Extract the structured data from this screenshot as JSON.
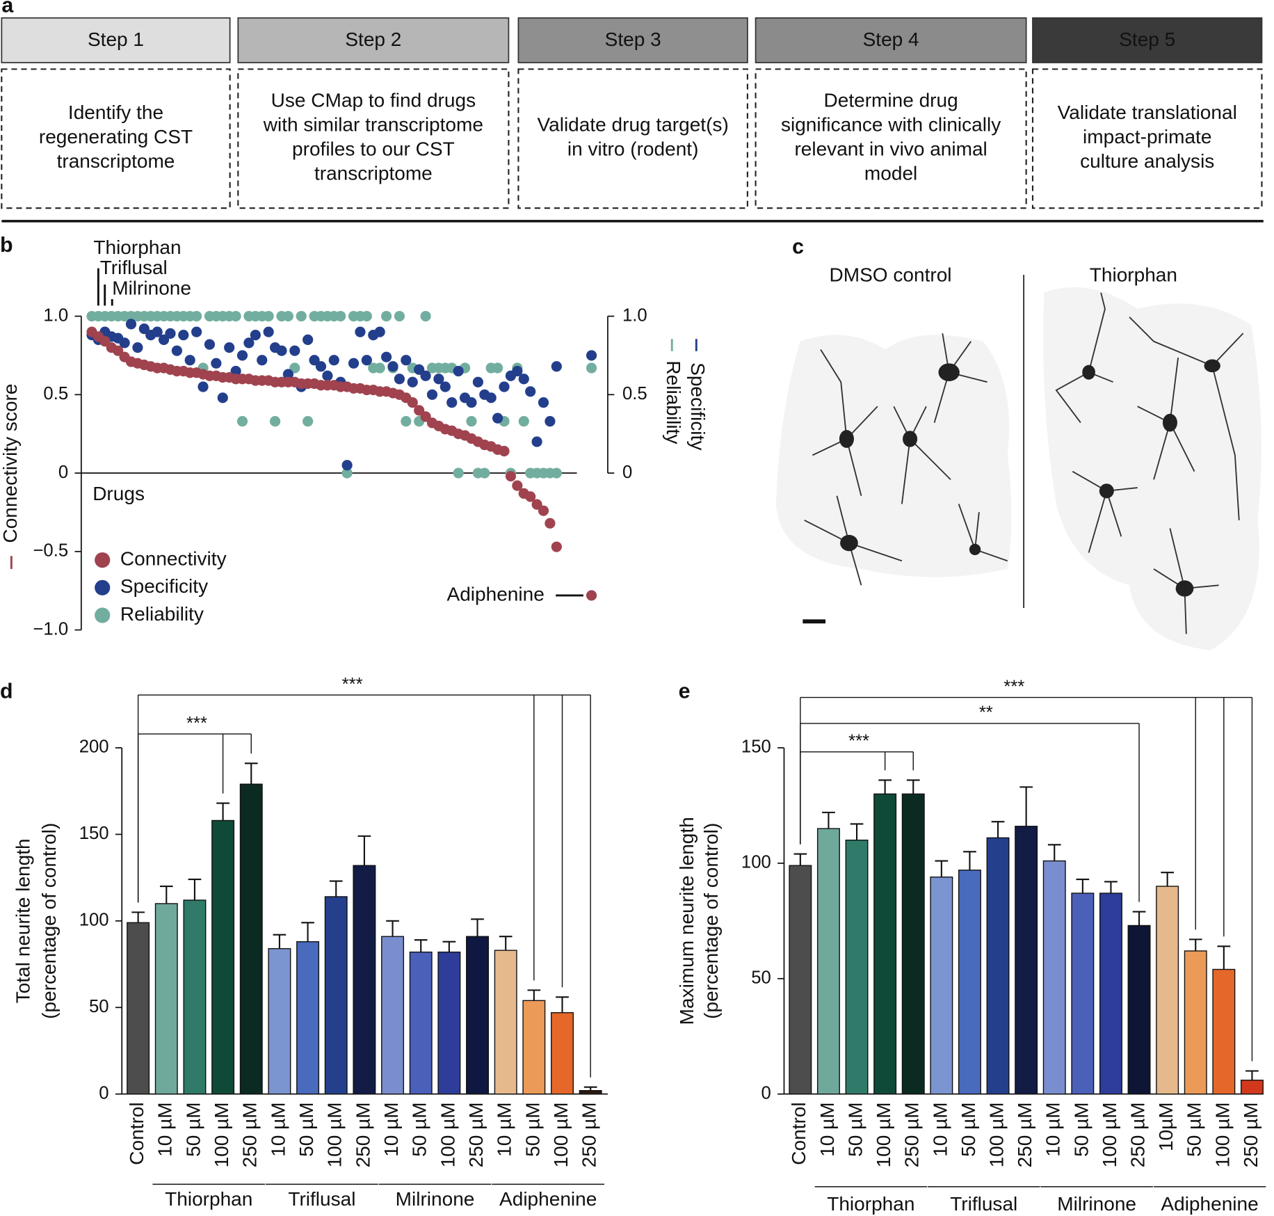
{
  "panel_labels": [
    "a",
    "b",
    "c",
    "d",
    "e"
  ],
  "steps": [
    {
      "title": "Step 1",
      "color": "#dedede",
      "text_color": "#111111",
      "lines": [
        "Identify the",
        "regenerating CST",
        "transcriptome"
      ]
    },
    {
      "title": "Step 2",
      "color": "#b6b6b6",
      "text_color": "#111111",
      "lines": [
        "Use CMap to find drugs",
        "with similar transcriptome",
        "profiles to our CST",
        "transcriptome"
      ]
    },
    {
      "title": "Step 3",
      "color": "#8f8f8f",
      "text_color": "#111111",
      "lines": [
        "Validate drug target(s)",
        "in vitro (rodent)"
      ]
    },
    {
      "title": "Step 4",
      "color": "#8b8b8b",
      "text_color": "#ffffff",
      "lines": [
        "Determine drug",
        "significance with clinically",
        "relevant in vivo animal",
        "model"
      ]
    },
    {
      "title": "Step 5",
      "color": "#3a3a3a",
      "text_color": "#ffffff",
      "lines": [
        "Validate translational",
        "impact-primate",
        "culture analysis"
      ]
    }
  ],
  "images": {
    "labels": [
      "DMSO control",
      "Thiorphan"
    ]
  },
  "chart_data": [
    {
      "type": "scatter",
      "xlabel": "Drugs",
      "ylabel": "Connectivity score",
      "y2labels": [
        "Specificity",
        "Reliability"
      ],
      "ylim": [
        -1,
        1
      ],
      "yticks": [
        {
          "value": -1,
          "label": "−1.0"
        },
        {
          "value": -0.5,
          "label": "−0.5"
        },
        0,
        0.5,
        {
          "value": 1,
          "label": "1.0"
        }
      ],
      "y2lim": [
        0,
        1
      ],
      "y2ticks": [
        0,
        0.5,
        {
          "value": 1,
          "label": "1.0"
        }
      ],
      "legend": "bottom left",
      "annotations": [
        "Thiorphan",
        "Triflusal",
        "Milrinone"
      ],
      "highlight": {
        "label": "Adiphenine",
        "connectivity": -0.78,
        "specificity": 0.75,
        "reliability": 0.67
      },
      "series": [
        {
          "name": "Connectivity",
          "color": "#a0434f",
          "values": [
            0.9,
            0.87,
            0.84,
            0.8,
            0.78,
            0.74,
            0.71,
            0.7,
            0.69,
            0.68,
            0.67,
            0.67,
            0.66,
            0.65,
            0.65,
            0.64,
            0.64,
            0.63,
            0.62,
            0.62,
            0.61,
            0.61,
            0.6,
            0.6,
            0.6,
            0.59,
            0.59,
            0.59,
            0.58,
            0.58,
            0.58,
            0.58,
            0.57,
            0.57,
            0.57,
            0.56,
            0.56,
            0.56,
            0.55,
            0.55,
            0.54,
            0.54,
            0.53,
            0.53,
            0.52,
            0.52,
            0.51,
            0.5,
            0.48,
            0.45,
            0.4,
            0.36,
            0.32,
            0.3,
            0.28,
            0.27,
            0.25,
            0.24,
            0.22,
            0.2,
            0.18,
            0.17,
            0.15,
            0.14,
            -0.02,
            -0.08,
            -0.13,
            -0.15,
            -0.2,
            -0.24,
            -0.32,
            -0.47
          ]
        },
        {
          "name": "Specificity",
          "color": "#233f8c",
          "axis": "y2",
          "values": [
            0.88,
            0.85,
            0.9,
            0.87,
            0.86,
            0.83,
            0.95,
            0.8,
            0.92,
            0.88,
            0.9,
            0.85,
            0.89,
            0.78,
            0.88,
            0.72,
            0.9,
            0.55,
            0.82,
            0.7,
            0.48,
            0.8,
            0.65,
            0.75,
            0.83,
            0.88,
            0.72,
            0.9,
            0.8,
            0.78,
            0.63,
            0.78,
            0.55,
            0.85,
            0.72,
            0.68,
            0.62,
            0.72,
            0.58,
            0.05,
            0.7,
            0.9,
            0.72,
            0.88,
            0.9,
            0.74,
            0.68,
            0.6,
            0.72,
            0.58,
            0.66,
            0.62,
            0.5,
            0.6,
            0.55,
            0.45,
            0.65,
            0.48,
            0.45,
            0.58,
            0.5,
            0.48,
            0.35,
            0.55,
            0.62,
            0.65,
            0.6,
            0.52,
            0.2,
            0.45,
            0.33,
            0.68
          ]
        },
        {
          "name": "Reliability",
          "color": "#72ae9f",
          "axis": "y2",
          "values": [
            1,
            1,
            1,
            1,
            1,
            1,
            1,
            1,
            1,
            1,
            1,
            1,
            1,
            1,
            1,
            1,
            1,
            0.67,
            1,
            1,
            1,
            1,
            1,
            0.33,
            1,
            1,
            1,
            1,
            0.33,
            1,
            1,
            0.67,
            1,
            0.33,
            1,
            1,
            1,
            1,
            1,
            0,
            1,
            1,
            1,
            0.67,
            0.67,
            1,
            0.67,
            1,
            0.33,
            0.67,
            0.33,
            1,
            0.67,
            0.67,
            0.67,
            0.67,
            0,
            0.67,
            0.33,
            0,
            0,
            0.67,
            0.67,
            0.33,
            0,
            0.67,
            0.33,
            0,
            0,
            0,
            0,
            0
          ]
        }
      ]
    },
    {
      "type": "bar",
      "ylabel": [
        "Total neurite length",
        "(percentage of control)"
      ],
      "categories": [
        "Control",
        "10 µM",
        "50 µM",
        "100 µM",
        "250 µM",
        "10 µM",
        "50 µM",
        "100 µM",
        "250 µM",
        "10 µM",
        "50 µM",
        "100 µM",
        "250 µM",
        "10 µM",
        "50 µM",
        "100 µM",
        "250 µM"
      ],
      "groups": [
        "Thiorphan",
        "Triflusal",
        "Milrinone",
        "Adiphenine"
      ],
      "values": [
        99,
        110,
        112,
        158,
        179,
        84,
        88,
        114,
        132,
        91,
        82,
        82,
        91,
        83,
        54,
        47,
        2
      ],
      "errors": [
        6,
        10,
        12,
        10,
        12,
        8,
        11,
        9,
        17,
        9,
        7,
        6,
        10,
        8,
        6,
        9,
        2
      ],
      "colors": [
        "#4d4d4d",
        "#6fa99c",
        "#2f7a68",
        "#0f4a38",
        "#0b2b22",
        "#7b95d1",
        "#4a6bbd",
        "#24408c",
        "#121c45",
        "#7a8dcf",
        "#4b60b8",
        "#2e3d9a",
        "#0f1840",
        "#e6b98c",
        "#eb9a58",
        "#e5682a",
        "#2b1a12"
      ],
      "ylim": [
        0,
        200
      ],
      "yticks": [
        0,
        50,
        100,
        150,
        200
      ],
      "annotations": [
        "***",
        "***"
      ]
    },
    {
      "type": "bar",
      "ylabel": [
        "Maximum neurite length",
        "(percentage of control)"
      ],
      "categories": [
        "Control",
        "10 µM",
        "50 µM",
        "100 µM",
        "250 µM",
        "10 µM",
        "50 µM",
        "100 µM",
        "250 µM",
        "10 µM",
        "50 µM",
        "100 µM",
        "250 µM",
        "10µM",
        "50 µM",
        "100 µM",
        "250 µM"
      ],
      "groups": [
        "Thiorphan",
        "Triflusal",
        "Milrinone",
        "Adiphenine"
      ],
      "values": [
        99,
        115,
        110,
        130,
        130,
        94,
        97,
        111,
        116,
        101,
        87,
        87,
        73,
        90,
        62,
        54,
        6
      ],
      "errors": [
        5,
        7,
        7,
        6,
        6,
        7,
        8,
        7,
        17,
        7,
        6,
        5,
        6,
        6,
        5,
        10,
        4
      ],
      "colors": [
        "#4d4d4d",
        "#6fa99c",
        "#2f7a68",
        "#0f4a38",
        "#0b2b22",
        "#7b95d1",
        "#4a6bbd",
        "#24408c",
        "#121c45",
        "#7a8dcf",
        "#4b60b8",
        "#2e3d9a",
        "#0f1535",
        "#e6b98c",
        "#eb9a58",
        "#e5682a",
        "#d2391c"
      ],
      "ylim": [
        0,
        150
      ],
      "yticks": [
        0,
        50,
        100,
        150
      ],
      "annotations": [
        "***",
        "**",
        "***"
      ]
    }
  ]
}
